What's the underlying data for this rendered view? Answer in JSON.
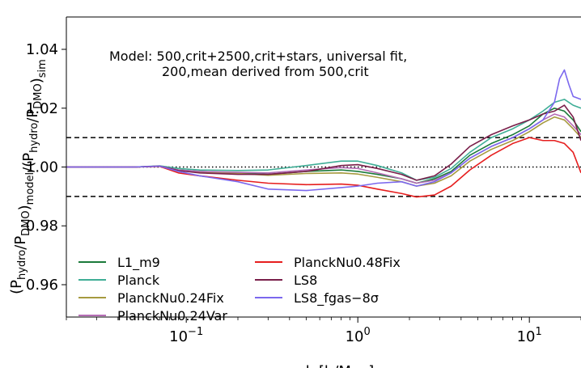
{
  "chart_data": {
    "type": "line",
    "xscale": "log",
    "xlim": [
      0.02,
      20
    ],
    "ylim": [
      0.949,
      1.051
    ],
    "xlabel": "k [h/Mpc]",
    "ylabel": "(P_hydro/P_DMO)_model/(P_hydro/P_DMO)_sim",
    "x_ticks": [
      {
        "value": 0.1,
        "label": "10^-1"
      },
      {
        "value": 1,
        "label": "10^0"
      },
      {
        "value": 10,
        "label": "10^1"
      }
    ],
    "y_ticks": [
      {
        "value": 0.96,
        "label": "0.96"
      },
      {
        "value": 0.98,
        "label": "0.98"
      },
      {
        "value": 1.0,
        "label": "1.00"
      },
      {
        "value": 1.02,
        "label": "1.02"
      },
      {
        "value": 1.04,
        "label": "1.04"
      }
    ],
    "annotation": {
      "line1": "Model: 500,crit+2500,crit+stars, universal fit,",
      "line2": "200,mean derived from 500,crit"
    },
    "reference_lines": [
      {
        "y": 1.01,
        "style": "dashed"
      },
      {
        "y": 0.99,
        "style": "dashed"
      },
      {
        "y": 1.0,
        "style": "dotted"
      }
    ],
    "legend_placement": "lower-left",
    "series": [
      {
        "name": "L1_m9",
        "color": "#1b7a3a",
        "x": [
          0.02,
          0.05,
          0.07,
          0.09,
          0.12,
          0.2,
          0.3,
          0.5,
          0.8,
          1.0,
          1.3,
          1.8,
          2.2,
          2.8,
          3.5,
          4.5,
          6,
          8,
          10,
          12,
          14,
          16,
          18,
          20
        ],
        "y": [
          1.0,
          1.0,
          1.0003,
          0.999,
          0.9985,
          0.998,
          0.9975,
          0.9985,
          0.999,
          0.9985,
          0.9975,
          0.996,
          0.9945,
          0.996,
          0.9985,
          1.004,
          1.008,
          1.011,
          1.014,
          1.018,
          1.02,
          1.019,
          1.016,
          1.012
        ]
      },
      {
        "name": "Planck",
        "color": "#3fae96",
        "x": [
          0.02,
          0.05,
          0.07,
          0.09,
          0.12,
          0.2,
          0.3,
          0.5,
          0.8,
          1.0,
          1.3,
          1.8,
          2.2,
          2.8,
          3.5,
          4.5,
          6,
          8,
          10,
          12,
          14,
          16,
          18,
          20
        ],
        "y": [
          1.0,
          1.0,
          1.0004,
          0.9995,
          0.999,
          0.9988,
          0.999,
          1.0005,
          1.002,
          1.002,
          1.0005,
          0.998,
          0.9955,
          0.9965,
          0.9995,
          1.005,
          1.01,
          1.013,
          1.016,
          1.019,
          1.022,
          1.023,
          1.021,
          1.02
        ]
      },
      {
        "name": "PlanckNu0.24Fix",
        "color": "#a69a3f",
        "x": [
          0.02,
          0.05,
          0.07,
          0.09,
          0.12,
          0.2,
          0.3,
          0.5,
          0.8,
          1.0,
          1.3,
          1.8,
          2.2,
          2.8,
          3.5,
          4.5,
          6,
          8,
          10,
          12,
          14,
          16,
          18,
          20
        ],
        "y": [
          1.0,
          1.0,
          1.0003,
          0.9988,
          0.9982,
          0.9978,
          0.9972,
          0.9978,
          0.998,
          0.9976,
          0.9965,
          0.995,
          0.9935,
          0.9945,
          0.997,
          1.002,
          1.006,
          1.009,
          1.012,
          1.015,
          1.017,
          1.016,
          1.013,
          1.01
        ]
      },
      {
        "name": "PlanckNu0.24Var",
        "color": "#b46cb4",
        "x": [
          0.02,
          0.05,
          0.07,
          0.09,
          0.12,
          0.2,
          0.3,
          0.5,
          0.8,
          1.0,
          1.3,
          1.8,
          2.2,
          2.8,
          3.5,
          4.5,
          6,
          8,
          10,
          12,
          14,
          16,
          18,
          20
        ],
        "y": [
          1.0,
          1.0,
          1.0003,
          0.999,
          0.9985,
          0.9982,
          0.998,
          0.999,
          0.9998,
          0.9995,
          0.998,
          0.996,
          0.9945,
          0.9955,
          0.998,
          1.003,
          1.007,
          1.01,
          1.013,
          1.016,
          1.018,
          1.017,
          1.014,
          1.011
        ]
      },
      {
        "name": "PlanckNu0.48Fix",
        "color": "#e61e1e",
        "x": [
          0.02,
          0.05,
          0.07,
          0.09,
          0.12,
          0.2,
          0.3,
          0.5,
          0.8,
          1.0,
          1.3,
          1.8,
          2.2,
          2.8,
          3.5,
          4.5,
          6,
          8,
          10,
          12,
          14,
          16,
          18,
          20
        ],
        "y": [
          1.0,
          1.0,
          1.0002,
          0.998,
          0.997,
          0.9955,
          0.9945,
          0.994,
          0.9942,
          0.9938,
          0.9925,
          0.991,
          0.9898,
          0.9905,
          0.9935,
          0.999,
          1.004,
          1.008,
          1.01,
          1.009,
          1.009,
          1.008,
          1.005,
          0.998
        ]
      },
      {
        "name": "LS8",
        "color": "#7a1f4a",
        "x": [
          0.02,
          0.05,
          0.07,
          0.09,
          0.12,
          0.2,
          0.3,
          0.5,
          0.8,
          1.0,
          1.3,
          1.8,
          2.2,
          2.8,
          3.5,
          4.5,
          6,
          8,
          10,
          12,
          14,
          16,
          18,
          20
        ],
        "y": [
          1.0,
          1.0,
          1.0003,
          0.9988,
          0.998,
          0.9975,
          0.9975,
          0.9985,
          1.0005,
          1.0008,
          0.9995,
          0.9975,
          0.9955,
          0.997,
          1.001,
          1.007,
          1.011,
          1.014,
          1.016,
          1.018,
          1.019,
          1.021,
          1.017,
          1.009
        ]
      },
      {
        "name": "LS8_fgas−8σ",
        "color": "#7b68ee",
        "x": [
          0.02,
          0.05,
          0.07,
          0.09,
          0.12,
          0.2,
          0.3,
          0.5,
          0.8,
          1.0,
          1.3,
          1.8,
          2.2,
          2.8,
          3.5,
          4.5,
          6,
          8,
          10,
          12,
          14,
          15,
          16,
          17,
          18,
          20
        ],
        "y": [
          1.0,
          1.0,
          1.0003,
          0.9985,
          0.997,
          0.995,
          0.9925,
          0.992,
          0.993,
          0.9935,
          0.9945,
          0.995,
          0.9935,
          0.995,
          0.998,
          1.003,
          1.007,
          1.01,
          1.013,
          1.016,
          1.022,
          1.03,
          1.033,
          1.028,
          1.024,
          1.023
        ]
      }
    ]
  }
}
